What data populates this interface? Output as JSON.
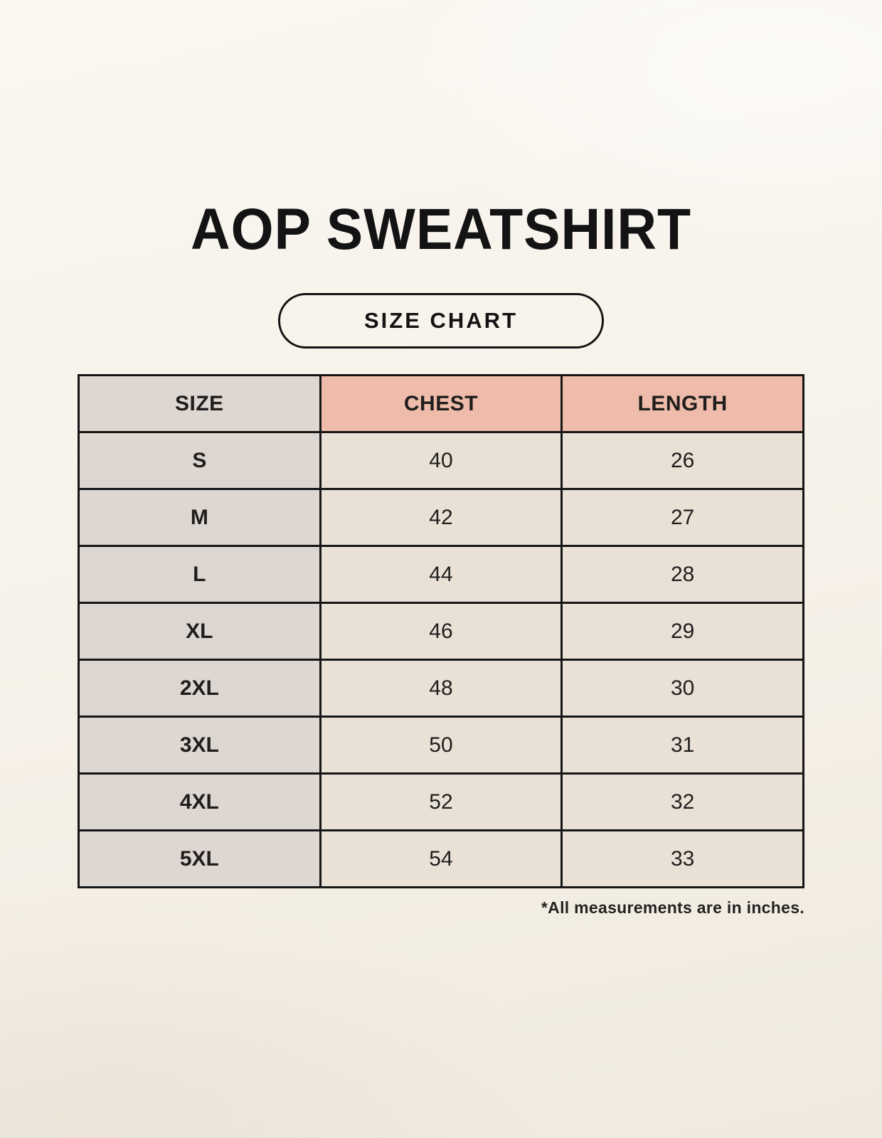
{
  "page": {
    "badge": "SIZE CHART"
  },
  "chart_data": {
    "type": "table",
    "title": "AOP SWEATSHIRT",
    "columns": [
      "SIZE",
      "CHEST",
      "LENGTH"
    ],
    "rows": [
      [
        "S",
        "40",
        "26"
      ],
      [
        "M",
        "42",
        "27"
      ],
      [
        "L",
        "44",
        "28"
      ],
      [
        "XL",
        "46",
        "29"
      ],
      [
        "2XL",
        "48",
        "30"
      ],
      [
        "3XL",
        "50",
        "31"
      ],
      [
        "4XL",
        "52",
        "32"
      ],
      [
        "5XL",
        "54",
        "33"
      ]
    ],
    "footnote": "*All measurements are in inches.",
    "units": "inches",
    "layout": {
      "header_size_bg": "#ded6d1",
      "header_measure_bg": "#efbcab",
      "body_size_bg": "#ded6d1",
      "body_data_bg": "#e9e1d6",
      "grid_color": "#161616",
      "page_background": "#f6f1e8"
    }
  }
}
